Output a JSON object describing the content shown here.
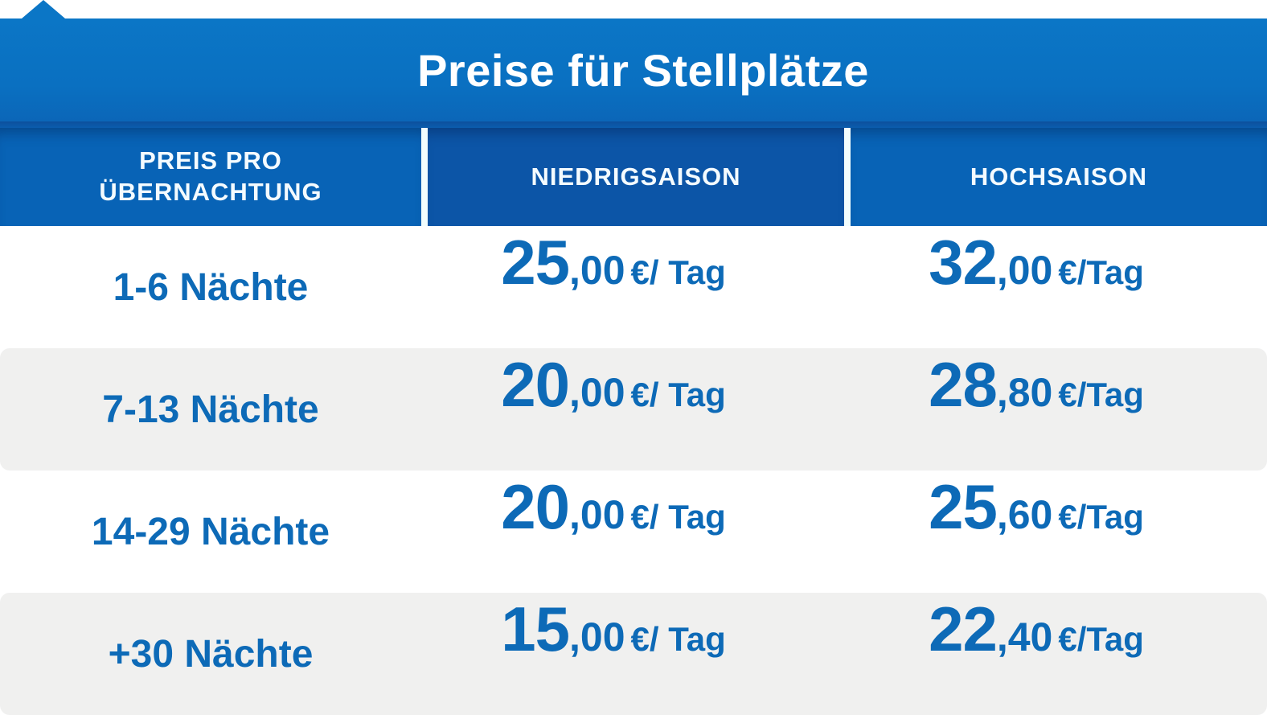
{
  "banner": {
    "title": "Preise für Stellplätze"
  },
  "table": {
    "columns": {
      "col1": "PREIS PRO\nÜBERNACHTUNG",
      "col2": "NIEDRIGSAISON",
      "col3": "HOCHSAISON"
    },
    "rows": [
      {
        "label": "1-6 Nächte",
        "low": {
          "int": "25",
          "dec": ",00",
          "unit": "€/ Tag"
        },
        "high": {
          "int": "32",
          "dec": ",00",
          "unit": "€/Tag"
        }
      },
      {
        "label": "7-13 Nächte",
        "low": {
          "int": "20",
          "dec": ",00",
          "unit": "€/ Tag"
        },
        "high": {
          "int": "28",
          "dec": ",80",
          "unit": "€/Tag"
        }
      },
      {
        "label": "14-29 Nächte",
        "low": {
          "int": "20",
          "dec": ",00",
          "unit": "€/ Tag"
        },
        "high": {
          "int": "25",
          "dec": ",60",
          "unit": "€/Tag"
        }
      },
      {
        "label": "+30 Nächte",
        "low": {
          "int": "15",
          "dec": ",00",
          "unit": "€/ Tag"
        },
        "high": {
          "int": "22",
          "dec": ",40",
          "unit": "€/Tag"
        }
      }
    ]
  },
  "chart_data": {
    "type": "table",
    "title": "Preise für Stellplätze",
    "columns": [
      "PREIS PRO ÜBERNACHTUNG",
      "NIEDRIGSAISON",
      "HOCHSAISON"
    ],
    "rows": [
      [
        "1-6 Nächte",
        "25,00 €/ Tag",
        "32,00 €/Tag"
      ],
      [
        "7-13 Nächte",
        "20,00 €/ Tag",
        "28,80 €/Tag"
      ],
      [
        "14-29 Nächte",
        "20,00€/ Tag",
        "25,60 €/Tag"
      ],
      [
        "+30 Nächte",
        "15,00€/ Tag",
        "22,40 €/Tag"
      ]
    ],
    "values_eur_per_tag": {
      "niedrigsaison": [
        25.0,
        20.0,
        20.0,
        15.0
      ],
      "hochsaison": [
        32.0,
        28.8,
        25.6,
        22.4
      ]
    }
  },
  "colors": {
    "title_band_top": "#0b76c6",
    "title_band_mid": "#0a70c1",
    "title_band_bottom": "#0b66b8",
    "header_shadow": "#0c509d",
    "header_shadow_light": "#0b5cad",
    "header_cell": "#0863b6",
    "header_cell_dark": "#0c55a7",
    "header_text": "#f4fbff",
    "divider": "#f2fdfd",
    "text_blue": "#0d6ab7",
    "row_alt": "#f0f0ef",
    "row_white": "#ffffff",
    "title_text": "#ffffff"
  }
}
